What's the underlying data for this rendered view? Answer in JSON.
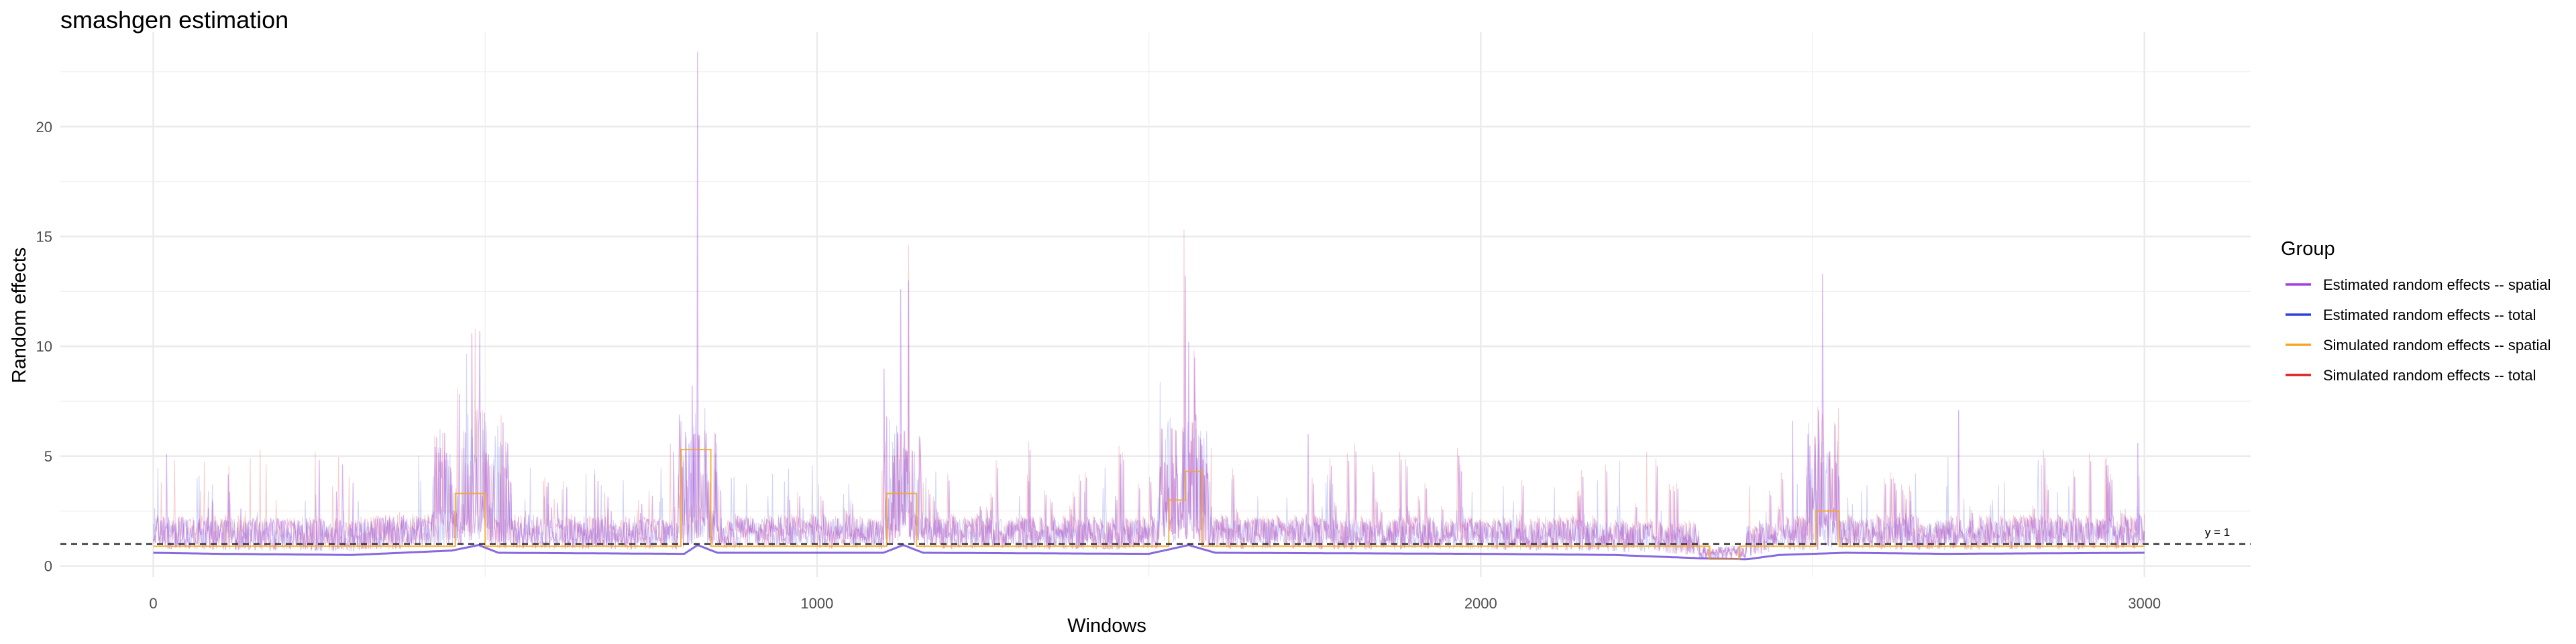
{
  "chart_data": {
    "type": "line",
    "title": "smashgen estimation",
    "xlabel": "Windows",
    "ylabel": "Random effects",
    "xlim": [
      -140,
      3160
    ],
    "ylim": [
      -0.5,
      24.3
    ],
    "x_ticks": [
      "0",
      "1000",
      "2000",
      "3000"
    ],
    "y_ticks": [
      "0",
      "5",
      "10",
      "15",
      "20"
    ],
    "grid": true,
    "legend_position": "right",
    "legend_title": "Group",
    "hline": {
      "y": 1,
      "label": "y = 1",
      "style": "dashed"
    },
    "series": [
      {
        "name": "Estimated random effects -- spatial",
        "color": "#a040e0",
        "summary": {
          "n_points": 3000,
          "typical_range": [
            0.4,
            3.5
          ],
          "max": 23.4,
          "max_at": 820
        },
        "smooth_baseline": [
          [
            0,
            0.6
          ],
          [
            100,
            0.55
          ],
          [
            300,
            0.5
          ],
          [
            450,
            0.7
          ],
          [
            490,
            0.95
          ],
          [
            520,
            0.6
          ],
          [
            800,
            0.55
          ],
          [
            820,
            0.95
          ],
          [
            850,
            0.6
          ],
          [
            1100,
            0.6
          ],
          [
            1130,
            0.95
          ],
          [
            1160,
            0.6
          ],
          [
            1500,
            0.55
          ],
          [
            1560,
            0.95
          ],
          [
            1600,
            0.6
          ],
          [
            2000,
            0.55
          ],
          [
            2200,
            0.5
          ],
          [
            2330,
            0.35
          ],
          [
            2400,
            0.3
          ],
          [
            2450,
            0.5
          ],
          [
            2550,
            0.6
          ],
          [
            2700,
            0.55
          ],
          [
            3000,
            0.6
          ]
        ],
        "peaks": [
          [
            20,
            5.1
          ],
          [
            480,
            10.6
          ],
          [
            492,
            10.7
          ],
          [
            820,
            23.4
          ],
          [
            812,
            8.2
          ],
          [
            1126,
            12.6
          ],
          [
            1138,
            13.0
          ],
          [
            1555,
            13.2
          ],
          [
            1560,
            10.2
          ],
          [
            1740,
            6.0
          ],
          [
            2515,
            13.3
          ],
          [
            2470,
            6.6
          ],
          [
            2720,
            7.1
          ],
          [
            2990,
            5.6
          ]
        ]
      },
      {
        "name": "Estimated random effects -- total",
        "color": "#3040e0",
        "summary": {
          "n_points": 3000,
          "typical_range": [
            0.4,
            3.5
          ]
        }
      },
      {
        "name": "Simulated random effects -- spatial",
        "color": "#f5a623",
        "steps": [
          [
            0,
            0.9
          ],
          [
            455,
            0.9
          ],
          [
            455,
            3.3
          ],
          [
            500,
            3.3
          ],
          [
            500,
            0.9
          ],
          [
            795,
            0.9
          ],
          [
            795,
            5.3
          ],
          [
            840,
            5.3
          ],
          [
            840,
            0.9
          ],
          [
            1105,
            0.9
          ],
          [
            1105,
            3.3
          ],
          [
            1150,
            3.3
          ],
          [
            1150,
            0.9
          ],
          [
            1530,
            0.9
          ],
          [
            1530,
            3.0
          ],
          [
            1555,
            3.0
          ],
          [
            1555,
            4.3
          ],
          [
            1580,
            4.3
          ],
          [
            1580,
            0.9
          ],
          [
            2345,
            0.9
          ],
          [
            2345,
            0.3
          ],
          [
            2390,
            0.3
          ],
          [
            2390,
            0.9
          ],
          [
            2505,
            0.9
          ],
          [
            2505,
            2.5
          ],
          [
            2540,
            2.5
          ],
          [
            2540,
            0.9
          ],
          [
            3000,
            0.9
          ]
        ]
      },
      {
        "name": "Simulated random effects -- total",
        "color": "#e02020",
        "summary": {
          "n_points": 3000,
          "typical_range": [
            0.3,
            4.0
          ],
          "max": 15.3,
          "max_at": 1553
        },
        "peaks": [
          [
            485,
            10.8
          ],
          [
            1138,
            14.6
          ],
          [
            1553,
            15.3
          ],
          [
            2250,
            5.2
          ]
        ]
      }
    ]
  }
}
